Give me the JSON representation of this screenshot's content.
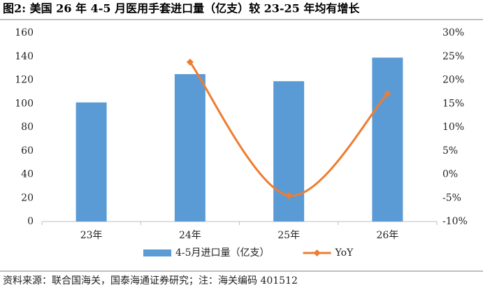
{
  "chart_data": {
    "type": "bar",
    "title": "图2: 美国 26 年 4-5 月医用手套进口量（亿支）较 23-25 年均有增长",
    "source": "资料来源：联合国海关，国泰海通证券研究；注：海关编码 401512",
    "categories": [
      "23年",
      "24年",
      "25年",
      "26年"
    ],
    "series": [
      {
        "name": "4-5月进口量（亿支）",
        "type": "bar",
        "color": "#5b9bd5",
        "values": [
          101,
          125,
          119,
          139
        ]
      },
      {
        "name": "YoY",
        "type": "line",
        "axis": "y2",
        "color": "#ed7d31",
        "values": [
          null,
          23.8,
          -4.5,
          17.1
        ]
      }
    ],
    "ylim": [
      0,
      160
    ],
    "yticks": [
      0,
      20,
      40,
      60,
      80,
      100,
      120,
      140,
      160
    ],
    "y2lim": [
      -10,
      30
    ],
    "y2ticks": [
      {
        "value": -10,
        "label": "-10%"
      },
      {
        "value": -5,
        "label": "-5%"
      },
      {
        "value": 0,
        "label": "0%"
      },
      {
        "value": 5,
        "label": "5%"
      },
      {
        "value": 10,
        "label": "10%"
      },
      {
        "value": 15,
        "label": "15%"
      },
      {
        "value": 20,
        "label": "20%"
      },
      {
        "value": 25,
        "label": "25%"
      },
      {
        "value": 30,
        "label": "30%"
      }
    ],
    "grid": false,
    "legend": "bottom"
  }
}
